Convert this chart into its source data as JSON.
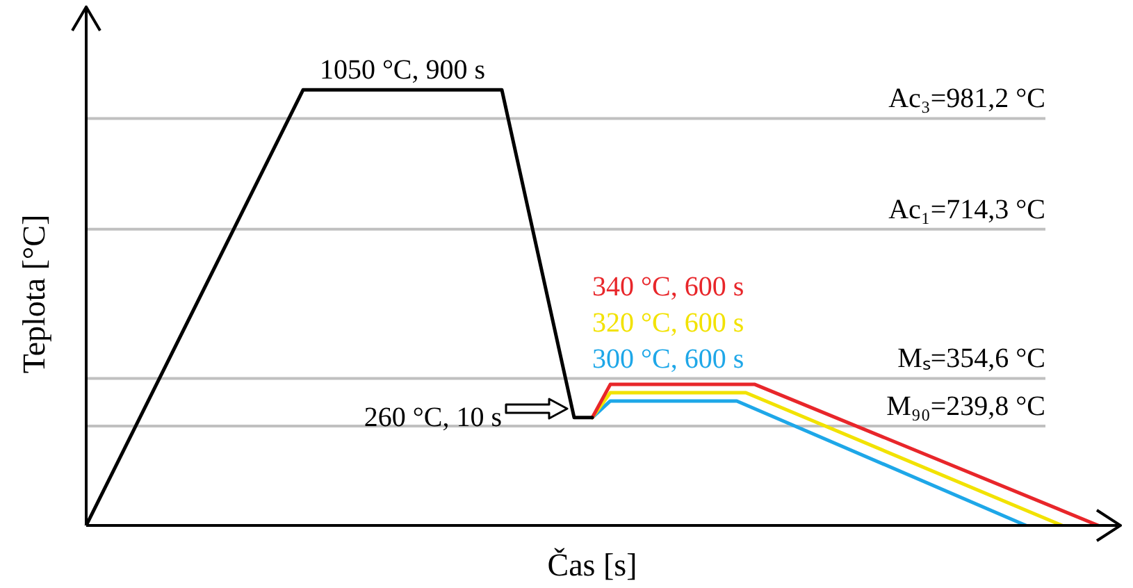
{
  "chart_data": {
    "type": "line",
    "xlabel": "Čas [s]",
    "ylabel": "Teplota [°C]",
    "ylim": [
      0,
      1250
    ],
    "tick_labels": false,
    "grid": false,
    "legend": false,
    "marker": "none",
    "line_style": "solid",
    "categories": [
      null,
      null,
      null,
      null,
      null,
      null,
      null,
      null,
      null,
      null,
      null,
      null,
      null,
      null,
      null,
      null,
      null,
      null,
      null,
      null,
      null,
      null,
      null,
      null,
      null,
      null,
      null,
      null,
      null,
      null,
      null,
      null,
      null,
      null,
      null,
      null,
      null,
      null,
      null,
      null,
      null,
      null,
      null,
      null,
      null,
      null,
      null,
      null,
      null,
      null,
      null,
      null,
      null,
      null,
      null,
      null,
      null,
      null,
      null,
      null,
      null,
      null,
      null,
      null,
      null,
      null,
      null,
      null,
      null,
      null,
      null,
      null,
      null,
      null,
      null,
      null,
      null,
      null,
      null,
      null,
      null,
      null,
      null,
      null,
      null,
      null,
      null,
      null,
      null,
      null,
      null,
      null,
      null,
      null,
      null,
      null,
      null,
      null,
      null,
      null,
      null,
      null,
      null,
      null,
      null,
      null,
      null,
      null,
      null,
      null,
      null,
      null,
      null
    ],
    "series": [
      {
        "color": "#000000",
        "values": [
          0,
          null,
          null,
          null,
          null,
          null,
          null,
          null,
          null,
          null,
          null,
          null,
          null,
          null,
          null,
          null,
          null,
          null,
          null,
          null,
          null,
          null,
          null,
          null,
          1050,
          null,
          null,
          null,
          null,
          null,
          null,
          null,
          null,
          null,
          null,
          null,
          null,
          null,
          null,
          null,
          null,
          null,
          null,
          null,
          null,
          null,
          1050,
          null,
          null,
          null,
          null,
          null,
          null,
          null,
          260,
          null,
          260,
          null,
          null,
          null,
          null,
          null,
          null,
          null,
          null,
          null,
          null,
          null,
          null,
          null,
          null,
          null,
          null,
          null,
          null,
          null,
          null,
          null,
          null,
          null,
          null,
          null,
          null,
          null,
          null,
          null,
          null,
          null,
          null,
          null,
          null,
          null,
          null,
          null,
          null,
          null,
          null,
          null,
          null,
          null,
          null,
          null,
          null,
          null,
          null,
          null,
          null,
          null,
          null,
          null,
          null,
          null,
          null
        ]
      },
      {
        "name": "340 °C, 600 s",
        "color": "#e8262a",
        "values": [
          null,
          null,
          null,
          null,
          null,
          null,
          null,
          null,
          null,
          null,
          null,
          null,
          null,
          null,
          null,
          null,
          null,
          null,
          null,
          null,
          null,
          null,
          null,
          null,
          null,
          null,
          null,
          null,
          null,
          null,
          null,
          null,
          null,
          null,
          null,
          null,
          null,
          null,
          null,
          null,
          null,
          null,
          null,
          null,
          null,
          null,
          null,
          null,
          null,
          null,
          null,
          null,
          null,
          null,
          null,
          null,
          260,
          null,
          340,
          null,
          null,
          null,
          null,
          null,
          null,
          null,
          null,
          null,
          null,
          null,
          null,
          null,
          null,
          null,
          340,
          null,
          null,
          null,
          null,
          null,
          null,
          null,
          null,
          null,
          null,
          null,
          null,
          null,
          null,
          null,
          null,
          null,
          null,
          null,
          null,
          null,
          null,
          null,
          null,
          null,
          null,
          null,
          null,
          null,
          null,
          null,
          null,
          null,
          null,
          null,
          null,
          null,
          0
        ]
      },
      {
        "name": "320 °C, 600 s",
        "color": "#f2e200",
        "values": [
          null,
          null,
          null,
          null,
          null,
          null,
          null,
          null,
          null,
          null,
          null,
          null,
          null,
          null,
          null,
          null,
          null,
          null,
          null,
          null,
          null,
          null,
          null,
          null,
          null,
          null,
          null,
          null,
          null,
          null,
          null,
          null,
          null,
          null,
          null,
          null,
          null,
          null,
          null,
          null,
          null,
          null,
          null,
          null,
          null,
          null,
          null,
          null,
          null,
          null,
          null,
          null,
          null,
          null,
          null,
          null,
          260,
          null,
          320,
          null,
          null,
          null,
          null,
          null,
          null,
          null,
          null,
          null,
          null,
          null,
          null,
          null,
          null,
          320,
          null,
          null,
          null,
          null,
          null,
          null,
          null,
          null,
          null,
          null,
          null,
          null,
          null,
          null,
          null,
          null,
          null,
          null,
          null,
          null,
          null,
          null,
          null,
          null,
          null,
          null,
          null,
          null,
          null,
          null,
          null,
          null,
          null,
          null,
          0,
          null,
          null,
          null,
          null
        ]
      },
      {
        "name": "300 °C, 600 s",
        "color": "#1ea7e8",
        "values": [
          null,
          null,
          null,
          null,
          null,
          null,
          null,
          null,
          null,
          null,
          null,
          null,
          null,
          null,
          null,
          null,
          null,
          null,
          null,
          null,
          null,
          null,
          null,
          null,
          null,
          null,
          null,
          null,
          null,
          null,
          null,
          null,
          null,
          null,
          null,
          null,
          null,
          null,
          null,
          null,
          null,
          null,
          null,
          null,
          null,
          null,
          null,
          null,
          null,
          null,
          null,
          null,
          null,
          null,
          null,
          null,
          260,
          null,
          300,
          null,
          null,
          null,
          null,
          null,
          null,
          null,
          null,
          null,
          null,
          null,
          null,
          null,
          300,
          null,
          null,
          null,
          null,
          null,
          null,
          null,
          null,
          null,
          null,
          null,
          null,
          null,
          null,
          null,
          null,
          null,
          null,
          null,
          null,
          null,
          null,
          null,
          null,
          null,
          null,
          null,
          null,
          null,
          null,
          null,
          0,
          null,
          null,
          null,
          null,
          null,
          null,
          null,
          null
        ]
      }
    ],
    "ref_lines": [
      {
        "axis": "y",
        "value": 981.2,
        "label": "Ac₃=981,2 °C",
        "color": "#c0c0c0"
      },
      {
        "axis": "y",
        "value": 714.3,
        "label": "Ac₁=714,3 °C",
        "color": "#c0c0c0"
      },
      {
        "axis": "y",
        "value": 354.6,
        "label": "Mₛ=354,6 °C",
        "color": "#c0c0c0"
      },
      {
        "axis": "y",
        "value": 239.8,
        "label": "M₉₀=239,8 °C",
        "color": "#c0c0c0"
      }
    ],
    "annotations": [
      "1050 °C, 900 s",
      "260 °C, 10 s"
    ]
  }
}
